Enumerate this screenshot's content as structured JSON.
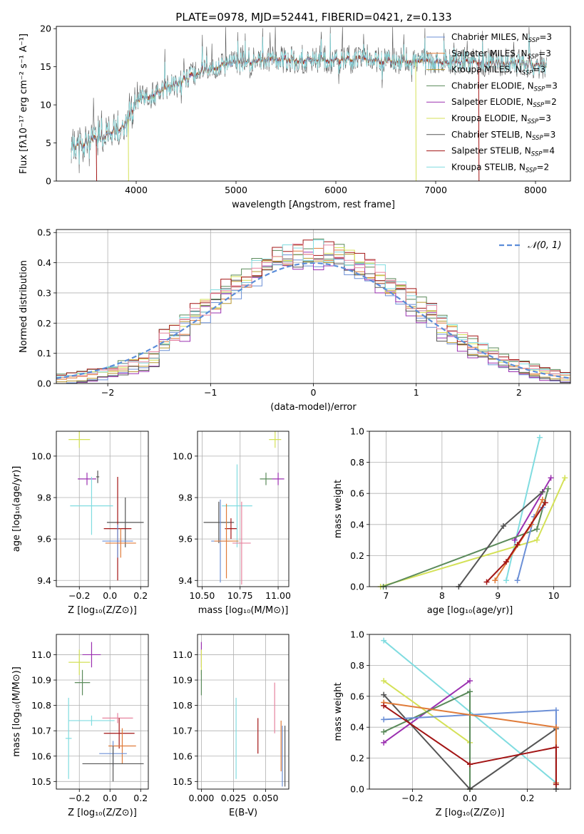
{
  "figure": {
    "title": "PLATE=0978, MJD=52441, FIBERID=0421, z=0.133"
  },
  "colors": {
    "Chabrier MILES": "#6b8fd6",
    "Salpeter MILES": "#e07b39",
    "Kroupa MILES": "#b8962e",
    "Chabrier ELODIE": "#5a8a5a",
    "Salpeter ELODIE": "#9b30b0",
    "Kroupa ELODIE": "#d4e157",
    "Chabrier STELIB": "#555555",
    "Salpeter STELIB": "#a31515",
    "Kroupa STELIB": "#80dce0",
    "Salpeter MILES hist": "#e7849f",
    "gaussian": "#5b8dd9"
  },
  "chart_data": [
    {
      "id": "spectrum",
      "type": "line",
      "title": "PLATE=0978, MJD=52441, FIBERID=0421, z=0.133",
      "xlabel": "wavelength [Angstrom, rest frame]",
      "ylabel": "Flux [fλ10⁻¹⁷ erg cm⁻² s⁻¹ A⁻¹]",
      "xlim": [
        3200,
        8350
      ],
      "ylim": [
        0,
        20.3
      ],
      "xticks": [
        4000,
        5000,
        6000,
        7000,
        8000
      ],
      "yticks": [
        0,
        5,
        10,
        15,
        20
      ],
      "grid": false,
      "legend_position": "right",
      "legend": [
        {
          "label": "Chabrier MILES, N",
          "sub": "SSP",
          "tail": "=3",
          "color_key": "Chabrier MILES"
        },
        {
          "label": "Salpeter MILES, N",
          "sub": "SSP",
          "tail": "=3",
          "color_key": "Salpeter MILES"
        },
        {
          "label": "Kroupa MILES, N",
          "sub": "SSP",
          "tail": "=3",
          "color_key": "Kroupa MILES"
        },
        {
          "label": "Chabrier ELODIE, N",
          "sub": "SSP",
          "tail": "=3",
          "color_key": "Chabrier ELODIE"
        },
        {
          "label": "Salpeter ELODIE, N",
          "sub": "SSP",
          "tail": "=2",
          "color_key": "Salpeter ELODIE"
        },
        {
          "label": "Kroupa ELODIE, N",
          "sub": "SSP",
          "tail": "=3",
          "color_key": "Kroupa ELODIE"
        },
        {
          "label": "Chabrier STELIB, N",
          "sub": "SSP",
          "tail": "=3",
          "color_key": "Chabrier STELIB"
        },
        {
          "label": "Salpeter STELIB, N",
          "sub": "SSP",
          "tail": "=4",
          "color_key": "Salpeter STELIB"
        },
        {
          "label": "Kroupa STELIB, N",
          "sub": "SSP",
          "tail": "=2",
          "color_key": "Kroupa STELIB"
        }
      ],
      "continuum": {
        "x": [
          3350,
          3500,
          3700,
          3900,
          4000,
          4200,
          4400,
          4600,
          4800,
          5000,
          5200,
          5500,
          5800,
          6000,
          6300,
          6600,
          7000,
          7400,
          7800,
          8100
        ],
        "y": [
          4.5,
          5.0,
          6.0,
          7.5,
          10.5,
          11.5,
          12.8,
          14.0,
          15.0,
          15.6,
          15.8,
          16.0,
          15.9,
          15.9,
          15.9,
          15.7,
          15.6,
          15.6,
          15.4,
          15.2
        ]
      },
      "dropouts": [
        {
          "x": 3600,
          "y": 0,
          "series": "Salpeter STELIB"
        },
        {
          "x": 3920,
          "y": 0,
          "series": "Kroupa ELODIE"
        },
        {
          "x": 6800,
          "y": 0,
          "series": "Kroupa ELODIE"
        },
        {
          "x": 7430,
          "y": 0,
          "series": "Salpeter STELIB"
        }
      ]
    },
    {
      "id": "residual_hist",
      "type": "histogram",
      "xlabel": "(data-model)/error",
      "ylabel": "Normed distribution",
      "xlim": [
        -2.5,
        2.5
      ],
      "ylim": [
        0,
        0.51
      ],
      "xticks": [
        -2,
        -1,
        0,
        1,
        2
      ],
      "yticks": [
        0.0,
        0.1,
        0.2,
        0.3,
        0.4,
        0.5
      ],
      "grid": true,
      "legend_position": "top-right",
      "legend": [
        {
          "label": "𝒩(0, 1)",
          "style": "dashed",
          "color_key": "gaussian"
        }
      ],
      "bin_width": 0.1,
      "series_colors": [
        "Chabrier MILES",
        "Salpeter MILES",
        "Kroupa MILES",
        "Chabrier ELODIE",
        "Salpeter ELODIE",
        "Kroupa ELODIE",
        "Chabrier STELIB",
        "Salpeter STELIB",
        "Kroupa STELIB",
        "Salpeter MILES hist"
      ]
    },
    {
      "id": "age_vs_Z",
      "type": "scatter",
      "xlabel": "Z [log₁₀(Z/Z⊙)]",
      "ylabel": "age  [log₁₀(age/yr)]",
      "xlim": [
        -0.35,
        0.25
      ],
      "ylim": [
        9.37,
        10.12
      ],
      "xticks": [
        -0.2,
        0.0,
        0.2
      ],
      "yticks": [
        9.4,
        9.6,
        9.8,
        10.0
      ],
      "grid": true,
      "points": [
        {
          "x": -0.2,
          "xerr": 0.07,
          "y": 10.08,
          "yerr": 0.04,
          "series": "Kroupa ELODIE"
        },
        {
          "x": -0.15,
          "xerr": 0.06,
          "y": 9.89,
          "yerr": 0.03,
          "series": "Salpeter ELODIE"
        },
        {
          "x": -0.08,
          "xerr": 0.01,
          "y": 9.9,
          "yerr": 0.03,
          "series": "Chabrier STELIB"
        },
        {
          "x": -0.12,
          "xerr": 0.14,
          "y": 9.76,
          "yerr": 0.14,
          "series": "Kroupa STELIB"
        },
        {
          "x": 0.1,
          "xerr": 0.12,
          "y": 9.68,
          "yerr": 0.12,
          "series": "Chabrier STELIB"
        },
        {
          "x": 0.05,
          "xerr": 0.09,
          "y": 9.65,
          "yerr": 0.25,
          "series": "Salpeter STELIB"
        },
        {
          "x": 0.05,
          "xerr": 0.1,
          "y": 9.59,
          "yerr": 0.08,
          "series": "Chabrier MILES"
        },
        {
          "x": 0.07,
          "xerr": 0.1,
          "y": 9.58,
          "yerr": 0.07,
          "series": "Salpeter MILES"
        }
      ]
    },
    {
      "id": "age_vs_mass",
      "type": "scatter",
      "xlabel": "mass [log₁₀(M/M⊙)]",
      "xlim": [
        10.47,
        11.07
      ],
      "ylim": [
        9.37,
        10.12
      ],
      "xticks": [
        10.5,
        10.75,
        11.0
      ],
      "yticks": [
        9.4,
        9.6,
        9.8,
        10.0
      ],
      "grid": true,
      "points": [
        {
          "x": 10.98,
          "xerr": 0.04,
          "y": 10.08,
          "yerr": 0.04,
          "series": "Kroupa ELODIE"
        },
        {
          "x": 11.0,
          "xerr": 0.04,
          "y": 9.89,
          "yerr": 0.03,
          "series": "Salpeter ELODIE"
        },
        {
          "x": 10.92,
          "xerr": 0.04,
          "y": 9.89,
          "yerr": 0.03,
          "series": "Chabrier ELODIE"
        },
        {
          "x": 10.61,
          "xerr": 0.1,
          "y": 9.68,
          "yerr": 0.1,
          "series": "Chabrier STELIB"
        },
        {
          "x": 10.69,
          "xerr": 0.04,
          "y": 9.65,
          "yerr": 0.05,
          "series": "Salpeter STELIB"
        },
        {
          "x": 10.73,
          "xerr": 0.1,
          "y": 9.76,
          "yerr": 0.2,
          "series": "Kroupa STELIB"
        },
        {
          "x": 10.62,
          "xerr": 0.06,
          "y": 9.59,
          "yerr": 0.2,
          "series": "Chabrier MILES"
        },
        {
          "x": 10.66,
          "xerr": 0.08,
          "y": 9.59,
          "yerr": 0.18,
          "series": "Salpeter MILES"
        },
        {
          "x": 10.76,
          "xerr": 0.06,
          "y": 9.58,
          "yerr": 0.2,
          "series": "Salpeter MILES hist"
        }
      ]
    },
    {
      "id": "mass_weight_vs_age",
      "type": "line",
      "xlabel": "age  [log₁₀(age/yr)]",
      "ylabel": "mass weight",
      "xlim": [
        6.7,
        10.3
      ],
      "ylim": [
        0.0,
        1.0
      ],
      "xticks": [
        7,
        8,
        9,
        10
      ],
      "yticks": [
        0.0,
        0.2,
        0.4,
        0.6,
        0.8,
        1.0
      ],
      "grid": true,
      "series": [
        {
          "color_key": "Kroupa STELIB",
          "x": [
            9.15,
            9.75
          ],
          "y": [
            0.04,
            0.96
          ]
        },
        {
          "color_key": "Salpeter ELODIE",
          "x": [
            9.3,
            9.95
          ],
          "y": [
            0.3,
            0.7
          ]
        },
        {
          "color_key": "Kroupa ELODIE",
          "x": [
            6.9,
            9.7,
            10.2
          ],
          "y": [
            0.0,
            0.3,
            0.7
          ]
        },
        {
          "color_key": "Chabrier ELODIE",
          "x": [
            6.95,
            9.7,
            9.9
          ],
          "y": [
            0.0,
            0.37,
            0.63
          ]
        },
        {
          "color_key": "Chabrier STELIB",
          "x": [
            8.3,
            9.1,
            9.8
          ],
          "y": [
            0.0,
            0.39,
            0.61
          ]
        },
        {
          "color_key": "Chabrier MILES",
          "x": [
            9.35,
            9.65,
            9.8
          ],
          "y": [
            0.04,
            0.45,
            0.51
          ]
        },
        {
          "color_key": "Salpeter MILES",
          "x": [
            8.95,
            9.6,
            9.8
          ],
          "y": [
            0.04,
            0.4,
            0.56
          ]
        },
        {
          "color_key": "Salpeter STELIB",
          "x": [
            8.8,
            9.15,
            9.35,
            9.85
          ],
          "y": [
            0.03,
            0.16,
            0.27,
            0.54
          ]
        }
      ]
    },
    {
      "id": "mass_vs_Z",
      "type": "scatter",
      "xlabel": "Z [log₁₀(Z/Z⊙)]",
      "ylabel": "mass [log₁₀(M/M⊙)]",
      "xlim": [
        -0.35,
        0.25
      ],
      "ylim": [
        10.47,
        11.08
      ],
      "xticks": [
        -0.2,
        0.0,
        0.2
      ],
      "yticks": [
        10.5,
        10.6,
        10.7,
        10.8,
        10.9,
        11.0
      ],
      "grid": true,
      "points": [
        {
          "x": -0.2,
          "xerr": 0.07,
          "y": 10.97,
          "yerr": 0.05,
          "series": "Kroupa ELODIE"
        },
        {
          "x": -0.12,
          "xerr": 0.06,
          "y": 11.0,
          "yerr": 0.05,
          "series": "Salpeter ELODIE"
        },
        {
          "x": -0.18,
          "xerr": 0.05,
          "y": 10.89,
          "yerr": 0.05,
          "series": "Chabrier ELODIE"
        },
        {
          "x": -0.27,
          "xerr": 0.02,
          "y": 10.67,
          "yerr": 0.16,
          "series": "Kroupa STELIB"
        },
        {
          "x": -0.12,
          "xerr": 0.15,
          "y": 10.74,
          "yerr": 0.02,
          "series": "Kroupa STELIB"
        },
        {
          "x": 0.05,
          "xerr": 0.1,
          "y": 10.75,
          "yerr": 0.02,
          "series": "Salpeter MILES hist"
        },
        {
          "x": 0.06,
          "xerr": 0.1,
          "y": 10.69,
          "yerr": 0.06,
          "series": "Salpeter STELIB"
        },
        {
          "x": 0.08,
          "xerr": 0.09,
          "y": 10.64,
          "yerr": 0.07,
          "series": "Salpeter MILES"
        },
        {
          "x": 0.02,
          "xerr": 0.09,
          "y": 10.61,
          "yerr": 0.05,
          "series": "Chabrier MILES"
        },
        {
          "x": 0.02,
          "xerr": 0.2,
          "y": 10.57,
          "yerr": 0.07,
          "series": "Chabrier STELIB"
        }
      ]
    },
    {
      "id": "mass_vs_ebv",
      "type": "scatter",
      "xlabel": "E(B-V)",
      "xlim": [
        -0.003,
        0.068
      ],
      "ylim": [
        10.47,
        11.08
      ],
      "xticks": [
        0.0,
        0.025,
        0.05
      ],
      "xticklabels": [
        "0.000",
        "0.025",
        "0.050"
      ],
      "yticks": [
        10.5,
        10.6,
        10.7,
        10.8,
        10.9,
        11.0
      ],
      "grid": true,
      "points": [
        {
          "x": 0.0,
          "y": 11.0,
          "yerr": 0.05,
          "series": "Salpeter ELODIE"
        },
        {
          "x": 0.0,
          "y": 10.97,
          "yerr": 0.05,
          "series": "Kroupa ELODIE"
        },
        {
          "x": 0.0,
          "y": 10.89,
          "yerr": 0.05,
          "series": "Chabrier ELODIE"
        },
        {
          "x": 0.027,
          "y": 10.67,
          "yerr": 0.16,
          "series": "Kroupa STELIB"
        },
        {
          "x": 0.044,
          "y": 10.68,
          "yerr": 0.07,
          "series": "Salpeter STELIB"
        },
        {
          "x": 0.057,
          "y": 10.79,
          "yerr": 0.1,
          "series": "Salpeter MILES hist"
        },
        {
          "x": 0.062,
          "y": 10.64,
          "yerr": 0.1,
          "series": "Salpeter MILES"
        },
        {
          "x": 0.063,
          "y": 10.6,
          "yerr": 0.12,
          "series": "Chabrier MILES"
        },
        {
          "x": 0.065,
          "y": 10.6,
          "yerr": 0.12,
          "series": "Chabrier STELIB"
        }
      ]
    },
    {
      "id": "mass_weight_vs_Z",
      "type": "line",
      "xlabel": "Z [log₁₀(Z/Z⊙)]",
      "ylabel": "mass weight",
      "xlim": [
        -0.35,
        0.35
      ],
      "ylim": [
        0.0,
        1.0
      ],
      "xticks": [
        -0.2,
        0.0,
        0.2
      ],
      "yticks": [
        0.0,
        0.2,
        0.4,
        0.6,
        0.8,
        1.0
      ],
      "grid": true,
      "series": [
        {
          "color_key": "Kroupa STELIB",
          "x": [
            -0.3,
            0.3
          ],
          "y": [
            0.96,
            0.04
          ]
        },
        {
          "color_key": "Kroupa ELODIE",
          "x": [
            -0.3,
            0.0,
            0.0
          ],
          "y": [
            0.7,
            0.3,
            0.0
          ]
        },
        {
          "color_key": "Salpeter ELODIE",
          "x": [
            -0.3,
            0.0
          ],
          "y": [
            0.3,
            0.7
          ]
        },
        {
          "color_key": "Chabrier ELODIE",
          "x": [
            -0.3,
            0.0,
            0.0
          ],
          "y": [
            0.37,
            0.63,
            0.0
          ]
        },
        {
          "color_key": "Chabrier STELIB",
          "x": [
            -0.3,
            0.0,
            0.3,
            0.3
          ],
          "y": [
            0.61,
            0.0,
            0.39,
            0.0
          ]
        },
        {
          "color_key": "Chabrier MILES",
          "x": [
            -0.3,
            0.3,
            0.3
          ],
          "y": [
            0.45,
            0.51,
            0.04
          ]
        },
        {
          "color_key": "Salpeter MILES",
          "x": [
            -0.3,
            0.3,
            0.3
          ],
          "y": [
            0.56,
            0.4,
            0.04
          ]
        },
        {
          "color_key": "Salpeter STELIB",
          "x": [
            -0.3,
            0.0,
            0.3,
            0.3
          ],
          "y": [
            0.54,
            0.16,
            0.27,
            0.03
          ]
        }
      ]
    }
  ]
}
